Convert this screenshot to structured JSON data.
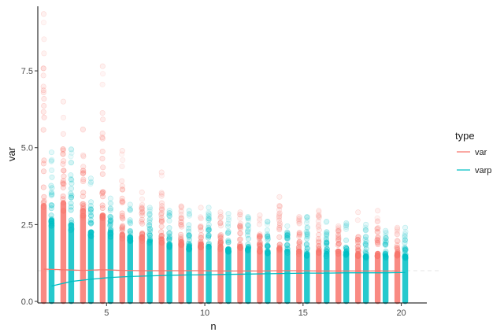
{
  "chart_data": {
    "type": "scatter",
    "xlabel": "n",
    "ylabel": "var",
    "xlim": [
      1.5,
      21.3
    ],
    "ylim": [
      -0.05,
      9.6
    ],
    "x_ticks": [
      5,
      10,
      15,
      20
    ],
    "y_ticks": [
      0.0,
      2.5,
      5.0,
      7.5
    ],
    "x_tick_labels": [
      "5",
      "10",
      "15",
      "20"
    ],
    "y_tick_labels": [
      "0.0",
      "2.5",
      "5.0",
      "7.5"
    ],
    "reference_line_y": 1.0,
    "grid": false,
    "legend": {
      "title": "type",
      "placement": "right",
      "entries": [
        "var",
        "varp"
      ]
    },
    "colors": {
      "var": "#F8766D",
      "varp": "#00BFC4",
      "reference": "#e6e6e6"
    },
    "series": [
      {
        "name": "var",
        "dodge": -0.2,
        "x": [
          2,
          3,
          4,
          5,
          6,
          7,
          8,
          9,
          10,
          11,
          12,
          13,
          14,
          15,
          16,
          17,
          18,
          19,
          20
        ],
        "y_max": [
          9.35,
          6.5,
          5.6,
          7.65,
          4.9,
          3.55,
          4.2,
          3.1,
          3.05,
          2.9,
          2.9,
          2.8,
          3.4,
          2.75,
          2.95,
          2.45,
          2.9,
          2.95,
          2.4
        ],
        "dense_max": [
          4.1,
          4.2,
          3.9,
          3.7,
          2.9,
          2.8,
          2.7,
          2.6,
          2.5,
          2.4,
          2.4,
          2.3,
          2.3,
          2.2,
          2.2,
          2.2,
          2.1,
          2.1,
          2.1
        ],
        "trend": [
          1.05,
          1.03,
          1.01,
          1.03,
          1.01,
          1.0,
          1.0,
          1.0,
          1.0,
          0.99,
          0.99,
          0.99,
          1.0,
          1.0,
          0.99,
          0.99,
          0.99,
          0.99,
          0.99
        ]
      },
      {
        "name": "varp",
        "dodge": 0.2,
        "x": [
          2,
          3,
          4,
          5,
          6,
          7,
          8,
          9,
          10,
          11,
          12,
          13,
          14,
          15,
          16,
          17,
          18,
          19,
          20
        ],
        "y_max": [
          4.85,
          4.95,
          4.0,
          3.35,
          3.15,
          3.05,
          2.95,
          2.95,
          3.05,
          2.85,
          2.75,
          2.6,
          2.45,
          2.75,
          2.6,
          2.55,
          2.5,
          2.3,
          2.4
        ],
        "dense_max": [
          3.5,
          3.3,
          3.0,
          3.0,
          2.8,
          2.6,
          2.5,
          2.4,
          2.4,
          2.3,
          2.3,
          2.2,
          2.2,
          2.1,
          2.1,
          2.1,
          2.0,
          2.0,
          2.0
        ],
        "trend": [
          0.5,
          0.65,
          0.72,
          0.78,
          0.81,
          0.83,
          0.85,
          0.86,
          0.87,
          0.88,
          0.89,
          0.9,
          0.91,
          0.92,
          0.92,
          0.93,
          0.93,
          0.93,
          0.94
        ]
      }
    ]
  }
}
